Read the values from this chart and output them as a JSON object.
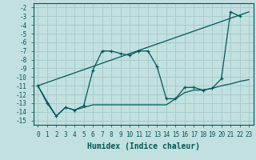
{
  "xlabel": "Humidex (Indice chaleur)",
  "bg_color": "#c2e0e0",
  "grid_color": "#a8cccc",
  "line_color": "#005858",
  "xlim": [
    -0.5,
    23.5
  ],
  "ylim": [
    -15.5,
    -1.5
  ],
  "xticks": [
    0,
    1,
    2,
    3,
    4,
    5,
    6,
    7,
    8,
    9,
    10,
    11,
    12,
    13,
    14,
    15,
    16,
    17,
    18,
    19,
    20,
    21,
    22,
    23
  ],
  "yticks": [
    -2,
    -3,
    -4,
    -5,
    -6,
    -7,
    -8,
    -9,
    -10,
    -11,
    -12,
    -13,
    -14,
    -15
  ],
  "line1_x": [
    0,
    23
  ],
  "line1_y": [
    -11,
    -2.5
  ],
  "line2_x": [
    0,
    1,
    2,
    3,
    4,
    5,
    6,
    7,
    8,
    9,
    10,
    11,
    12,
    13,
    14,
    15,
    16,
    17,
    18,
    19,
    20,
    21,
    22,
    23
  ],
  "line2_y": [
    -11,
    -12.8,
    -14.5,
    -13.5,
    -13.8,
    -13.5,
    -13.2,
    -13.2,
    -13.2,
    -13.2,
    -13.2,
    -13.2,
    -13.2,
    -13.2,
    -13.2,
    -12.5,
    -11.8,
    -11.5,
    -11.5,
    -11.3,
    -11.0,
    -10.8,
    -10.5,
    -10.3
  ],
  "line3_x": [
    0,
    1,
    2,
    3,
    4,
    5,
    6,
    7,
    8,
    9,
    10,
    11,
    12,
    13,
    14,
    15,
    16,
    17,
    18,
    19,
    20,
    21,
    22
  ],
  "line3_y": [
    -11,
    -13,
    -14.5,
    -13.5,
    -13.8,
    -13.3,
    -9.2,
    -7.0,
    -7.0,
    -7.3,
    -7.5,
    -7.0,
    -7.0,
    -8.8,
    -12.5,
    -12.5,
    -11.2,
    -11.2,
    -11.5,
    -11.3,
    -10.2,
    -2.5,
    -3.0
  ],
  "xlabel_fontsize": 7,
  "tick_fontsize": 5.5
}
